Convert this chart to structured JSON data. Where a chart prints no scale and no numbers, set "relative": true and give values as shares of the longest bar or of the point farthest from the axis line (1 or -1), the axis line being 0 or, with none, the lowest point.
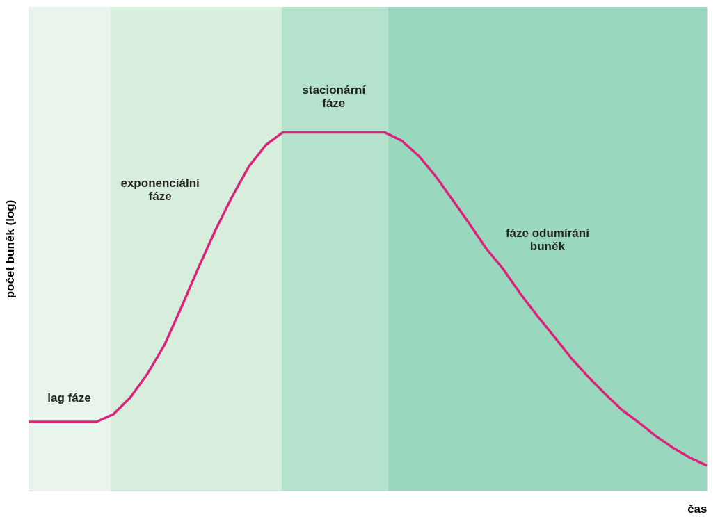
{
  "chart_data": {
    "type": "line",
    "relative": true,
    "xlabel": "čas",
    "ylabel": "počet buněk (log)",
    "tick_labels": false,
    "grid": false,
    "line_style": "solid",
    "categories": [
      null,
      null,
      null,
      null,
      null,
      null,
      null,
      null,
      null,
      null,
      null,
      null,
      null,
      null,
      null,
      null,
      null,
      null,
      null,
      null,
      null,
      null,
      null,
      null,
      null,
      null,
      null,
      null,
      null,
      null,
      null,
      null,
      null,
      null,
      null,
      null,
      null,
      null,
      null,
      null,
      null
    ],
    "series": [
      {
        "color": "#dc2379",
        "values": [
          0.192,
          0.192,
          0.192,
          0.192,
          0.192,
          0.213,
          0.26,
          0.325,
          0.405,
          0.51,
          0.62,
          0.725,
          0.82,
          0.905,
          0.965,
          1,
          1,
          1,
          1,
          1,
          1,
          1,
          0.977,
          0.935,
          0.878,
          0.812,
          0.745,
          0.675,
          0.618,
          0.55,
          0.488,
          0.43,
          0.37,
          0.318,
          0.27,
          0.225,
          0.19,
          0.152,
          0.12,
          0.092,
          0.07
        ]
      }
    ],
    "annotations": [
      "lag fáze",
      "exponenciální\nfáze",
      "stacionární\nfáze",
      "fáze odumírání\nbuněk"
    ]
  }
}
